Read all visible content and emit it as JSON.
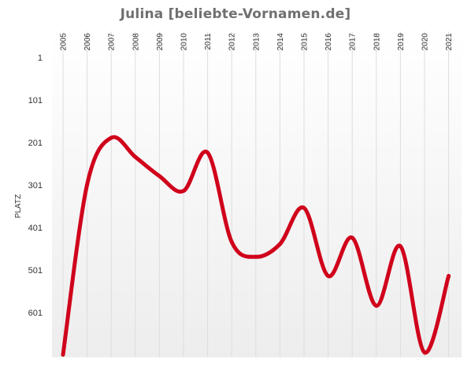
{
  "chart_data": {
    "type": "line",
    "title": "Julina [beliebte-Vornamen.de]",
    "ylabel": "PLATZ",
    "xlabel": "",
    "x": [
      "2005",
      "2006",
      "2007",
      "2008",
      "2009",
      "2010",
      "2011",
      "2012",
      "2013",
      "2014",
      "2015",
      "2016",
      "2017",
      "2018",
      "2019",
      "2020",
      "2021"
    ],
    "y_ticks": [
      "1",
      "101",
      "201",
      "301",
      "401",
      "501",
      "601"
    ],
    "ylim": [
      1,
      700
    ],
    "y_reversed": true,
    "grid": "vertical",
    "series": [
      {
        "color": "#d0021b",
        "values": [
          700,
          300,
          190,
          235,
          280,
          315,
          225,
          435,
          470,
          440,
          355,
          515,
          425,
          585,
          445,
          695,
          515
        ]
      }
    ]
  }
}
